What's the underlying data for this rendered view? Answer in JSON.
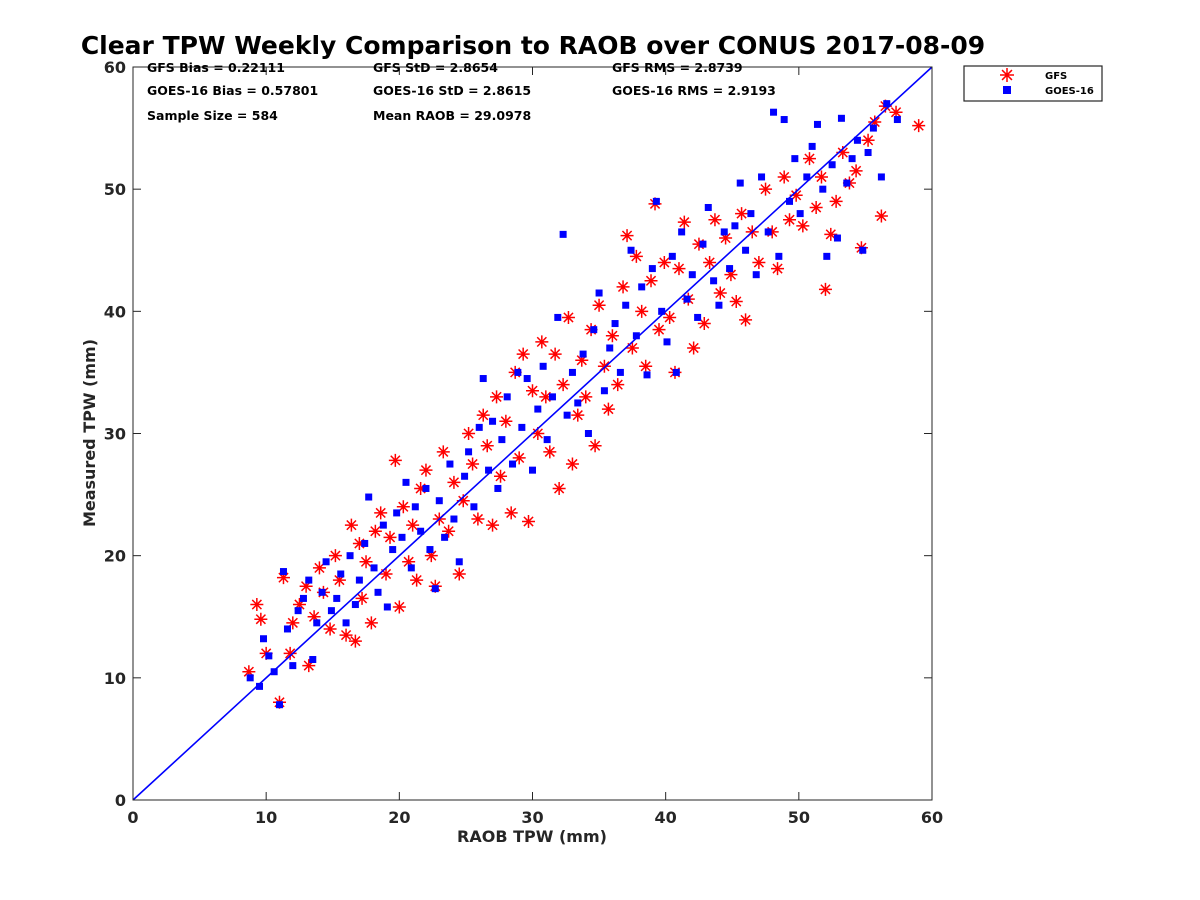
{
  "chart_data": {
    "type": "scatter",
    "title": "Clear TPW Weekly Comparison to RAOB over CONUS 2017-08-09",
    "xlabel": "RAOB TPW (mm)",
    "ylabel": "Measured TPW (mm)",
    "xlim": [
      0,
      60
    ],
    "ylim": [
      0,
      60
    ],
    "xticks": [
      "0",
      "10",
      "20",
      "30",
      "40",
      "50",
      "60"
    ],
    "yticks": [
      "0",
      "10",
      "20",
      "30",
      "40",
      "50",
      "60"
    ],
    "grid": false,
    "legend_position": "outside-top-right",
    "reference_line": {
      "from": [
        0,
        0
      ],
      "to": [
        60,
        60
      ],
      "color": "#0000ff"
    },
    "stats": [
      "GFS Bias = 0.22111",
      "GFS StD = 2.8654",
      "GFS RMS = 2.8739",
      "GOES-16 Bias = 0.57801",
      "GOES-16 StD = 2.8615",
      "GOES-16 RMS = 2.9193",
      "Sample Size = 584",
      "Mean RAOB = 29.0978"
    ],
    "series": [
      {
        "name": "GFS",
        "marker": "asterisk",
        "color": "#ff0000",
        "points": [
          [
            8.7,
            10.5
          ],
          [
            9.3,
            16.0
          ],
          [
            9.6,
            14.8
          ],
          [
            10.0,
            12.0
          ],
          [
            11.0,
            8.0
          ],
          [
            11.3,
            18.2
          ],
          [
            11.8,
            12.0
          ],
          [
            12.0,
            14.5
          ],
          [
            12.5,
            16.0
          ],
          [
            13.0,
            17.5
          ],
          [
            13.2,
            11.0
          ],
          [
            13.6,
            15.0
          ],
          [
            14.0,
            19.0
          ],
          [
            14.3,
            17.0
          ],
          [
            14.8,
            14.0
          ],
          [
            15.2,
            20.0
          ],
          [
            15.5,
            18.0
          ],
          [
            16.0,
            13.5
          ],
          [
            16.4,
            22.5
          ],
          [
            16.7,
            13.0
          ],
          [
            17.0,
            21.0
          ],
          [
            17.2,
            16.5
          ],
          [
            17.5,
            19.5
          ],
          [
            17.9,
            14.5
          ],
          [
            18.2,
            22.0
          ],
          [
            18.6,
            23.5
          ],
          [
            19.0,
            18.5
          ],
          [
            19.3,
            21.5
          ],
          [
            19.7,
            27.8
          ],
          [
            20.0,
            15.8
          ],
          [
            20.3,
            24.0
          ],
          [
            20.7,
            19.5
          ],
          [
            21.0,
            22.5
          ],
          [
            21.3,
            18.0
          ],
          [
            21.6,
            25.5
          ],
          [
            22.0,
            27.0
          ],
          [
            22.4,
            20.0
          ],
          [
            22.7,
            17.5
          ],
          [
            23.0,
            23.0
          ],
          [
            23.3,
            28.5
          ],
          [
            23.7,
            22.0
          ],
          [
            24.1,
            26.0
          ],
          [
            24.5,
            18.5
          ],
          [
            24.8,
            24.5
          ],
          [
            25.2,
            30.0
          ],
          [
            25.5,
            27.5
          ],
          [
            25.9,
            23.0
          ],
          [
            26.3,
            31.5
          ],
          [
            26.6,
            29.0
          ],
          [
            27.0,
            22.5
          ],
          [
            27.3,
            33.0
          ],
          [
            27.6,
            26.5
          ],
          [
            28.0,
            31.0
          ],
          [
            28.4,
            23.5
          ],
          [
            28.7,
            35.0
          ],
          [
            29.0,
            28.0
          ],
          [
            29.3,
            36.5
          ],
          [
            29.7,
            22.8
          ],
          [
            30.0,
            33.5
          ],
          [
            30.4,
            30.0
          ],
          [
            30.7,
            37.5
          ],
          [
            31.0,
            33.0
          ],
          [
            31.3,
            28.5
          ],
          [
            31.7,
            36.5
          ],
          [
            32.0,
            25.5
          ],
          [
            32.3,
            34.0
          ],
          [
            32.7,
            39.5
          ],
          [
            33.0,
            27.5
          ],
          [
            33.4,
            31.5
          ],
          [
            33.7,
            36.0
          ],
          [
            34.0,
            33.0
          ],
          [
            34.4,
            38.5
          ],
          [
            34.7,
            29.0
          ],
          [
            35.0,
            40.5
          ],
          [
            35.4,
            35.5
          ],
          [
            35.7,
            32.0
          ],
          [
            36.0,
            38.0
          ],
          [
            36.4,
            34.0
          ],
          [
            36.8,
            42.0
          ],
          [
            37.1,
            46.2
          ],
          [
            37.5,
            37.0
          ],
          [
            37.8,
            44.5
          ],
          [
            38.2,
            40.0
          ],
          [
            38.5,
            35.5
          ],
          [
            38.9,
            42.5
          ],
          [
            39.2,
            48.8
          ],
          [
            39.5,
            38.5
          ],
          [
            39.9,
            44.0
          ],
          [
            40.3,
            39.5
          ],
          [
            40.7,
            35.0
          ],
          [
            41.0,
            43.5
          ],
          [
            41.4,
            47.3
          ],
          [
            41.7,
            41.0
          ],
          [
            42.1,
            37.0
          ],
          [
            42.5,
            45.5
          ],
          [
            42.9,
            39.0
          ],
          [
            43.3,
            44.0
          ],
          [
            43.7,
            47.5
          ],
          [
            44.1,
            41.5
          ],
          [
            44.5,
            46.0
          ],
          [
            44.9,
            43.0
          ],
          [
            45.3,
            40.8
          ],
          [
            45.7,
            48.0
          ],
          [
            46.0,
            39.3
          ],
          [
            46.5,
            46.5
          ],
          [
            47.0,
            44.0
          ],
          [
            47.5,
            50.0
          ],
          [
            48.0,
            46.5
          ],
          [
            48.4,
            43.5
          ],
          [
            48.9,
            51.0
          ],
          [
            49.3,
            47.5
          ],
          [
            49.8,
            49.5
          ],
          [
            50.3,
            47.0
          ],
          [
            50.8,
            52.5
          ],
          [
            51.3,
            48.5
          ],
          [
            51.7,
            51.0
          ],
          [
            52.0,
            41.8
          ],
          [
            52.4,
            46.3
          ],
          [
            52.8,
            49.0
          ],
          [
            53.3,
            53.0
          ],
          [
            53.8,
            50.5
          ],
          [
            54.3,
            51.5
          ],
          [
            54.7,
            45.2
          ],
          [
            55.2,
            54.0
          ],
          [
            55.7,
            55.5
          ],
          [
            56.2,
            47.8
          ],
          [
            56.5,
            56.8
          ],
          [
            57.3,
            56.3
          ],
          [
            59.0,
            55.2
          ]
        ]
      },
      {
        "name": "GOES-16",
        "marker": "square",
        "color": "#0000ff",
        "points": [
          [
            8.8,
            10.0
          ],
          [
            9.5,
            9.3
          ],
          [
            9.8,
            13.2
          ],
          [
            10.2,
            11.8
          ],
          [
            10.6,
            10.5
          ],
          [
            11.0,
            7.8
          ],
          [
            11.3,
            18.7
          ],
          [
            11.6,
            14.0
          ],
          [
            12.0,
            11.0
          ],
          [
            12.4,
            15.5
          ],
          [
            12.8,
            16.5
          ],
          [
            13.2,
            18.0
          ],
          [
            13.5,
            11.5
          ],
          [
            13.8,
            14.5
          ],
          [
            14.2,
            17.0
          ],
          [
            14.5,
            19.5
          ],
          [
            14.9,
            15.5
          ],
          [
            15.3,
            16.5
          ],
          [
            15.6,
            18.5
          ],
          [
            16.0,
            14.5
          ],
          [
            16.3,
            20.0
          ],
          [
            16.7,
            16.0
          ],
          [
            17.0,
            18.0
          ],
          [
            17.4,
            21.0
          ],
          [
            17.7,
            24.8
          ],
          [
            18.1,
            19.0
          ],
          [
            18.4,
            17.0
          ],
          [
            18.8,
            22.5
          ],
          [
            19.1,
            15.8
          ],
          [
            19.5,
            20.5
          ],
          [
            19.8,
            23.5
          ],
          [
            20.2,
            21.5
          ],
          [
            20.5,
            26.0
          ],
          [
            20.9,
            19.0
          ],
          [
            21.2,
            24.0
          ],
          [
            21.6,
            22.0
          ],
          [
            22.0,
            25.5
          ],
          [
            22.3,
            20.5
          ],
          [
            22.7,
            17.3
          ],
          [
            23.0,
            24.5
          ],
          [
            23.4,
            21.5
          ],
          [
            23.8,
            27.5
          ],
          [
            24.1,
            23.0
          ],
          [
            24.5,
            19.5
          ],
          [
            24.9,
            26.5
          ],
          [
            25.2,
            28.5
          ],
          [
            25.6,
            24.0
          ],
          [
            26.0,
            30.5
          ],
          [
            26.3,
            34.5
          ],
          [
            26.7,
            27.0
          ],
          [
            27.0,
            31.0
          ],
          [
            27.4,
            25.5
          ],
          [
            27.7,
            29.5
          ],
          [
            28.1,
            33.0
          ],
          [
            28.5,
            27.5
          ],
          [
            28.9,
            35.0
          ],
          [
            29.2,
            30.5
          ],
          [
            29.6,
            34.5
          ],
          [
            30.0,
            27.0
          ],
          [
            30.4,
            32.0
          ],
          [
            30.8,
            35.5
          ],
          [
            31.1,
            29.5
          ],
          [
            31.5,
            33.0
          ],
          [
            31.9,
            39.5
          ],
          [
            32.3,
            46.3
          ],
          [
            32.6,
            31.5
          ],
          [
            33.0,
            35.0
          ],
          [
            33.4,
            32.5
          ],
          [
            33.8,
            36.5
          ],
          [
            34.2,
            30.0
          ],
          [
            34.6,
            38.5
          ],
          [
            35.0,
            41.5
          ],
          [
            35.4,
            33.5
          ],
          [
            35.8,
            37.0
          ],
          [
            36.2,
            39.0
          ],
          [
            36.6,
            35.0
          ],
          [
            37.0,
            40.5
          ],
          [
            37.4,
            45.0
          ],
          [
            37.8,
            38.0
          ],
          [
            38.2,
            42.0
          ],
          [
            38.6,
            34.8
          ],
          [
            39.0,
            43.5
          ],
          [
            39.3,
            49.0
          ],
          [
            39.7,
            40.0
          ],
          [
            40.1,
            37.5
          ],
          [
            40.5,
            44.5
          ],
          [
            40.8,
            35.0
          ],
          [
            41.2,
            46.5
          ],
          [
            41.6,
            41.0
          ],
          [
            42.0,
            43.0
          ],
          [
            42.4,
            39.5
          ],
          [
            42.8,
            45.5
          ],
          [
            43.2,
            48.5
          ],
          [
            43.6,
            42.5
          ],
          [
            44.0,
            40.5
          ],
          [
            44.4,
            46.5
          ],
          [
            44.8,
            43.5
          ],
          [
            45.2,
            47.0
          ],
          [
            45.6,
            50.5
          ],
          [
            46.0,
            45.0
          ],
          [
            46.4,
            48.0
          ],
          [
            46.8,
            43.0
          ],
          [
            47.2,
            51.0
          ],
          [
            47.7,
            46.5
          ],
          [
            48.1,
            56.3
          ],
          [
            48.5,
            44.5
          ],
          [
            48.9,
            55.7
          ],
          [
            49.3,
            49.0
          ],
          [
            49.7,
            52.5
          ],
          [
            50.1,
            48.0
          ],
          [
            50.6,
            51.0
          ],
          [
            51.0,
            53.5
          ],
          [
            51.4,
            55.3
          ],
          [
            51.8,
            50.0
          ],
          [
            52.1,
            44.5
          ],
          [
            52.5,
            52.0
          ],
          [
            52.9,
            46.0
          ],
          [
            53.2,
            55.8
          ],
          [
            53.6,
            50.5
          ],
          [
            54.0,
            52.5
          ],
          [
            54.4,
            54.0
          ],
          [
            54.8,
            45.0
          ],
          [
            55.2,
            53.0
          ],
          [
            55.6,
            55.0
          ],
          [
            56.2,
            51.0
          ],
          [
            56.6,
            57.0
          ],
          [
            57.4,
            55.7
          ]
        ]
      }
    ]
  }
}
